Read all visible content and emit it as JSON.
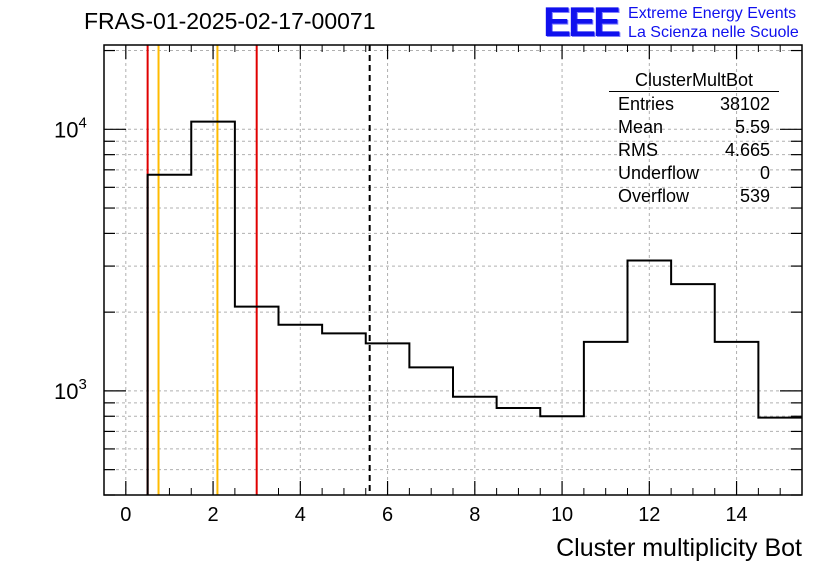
{
  "title": "FRAS-01-2025-02-17-00071",
  "logo": {
    "mark": "EEE",
    "line1": "Extreme Energy Events",
    "line2": "La Scienza nelle Scuole",
    "color": "#1010ee"
  },
  "stats_box": {
    "title": "ClusterMultBot",
    "rows": [
      {
        "label": "Entries",
        "value": "38102"
      },
      {
        "label": "Mean",
        "value": "5.59"
      },
      {
        "label": "RMS",
        "value": "4.665"
      },
      {
        "label": "Underflow",
        "value": "0"
      },
      {
        "label": "Overflow",
        "value": "539"
      }
    ]
  },
  "chart_data": {
    "type": "bar",
    "style": "step-histogram",
    "title": "FRAS-01-2025-02-17-00071",
    "xlabel": "Cluster multiplicity Bot",
    "ylabel": "",
    "xlim": [
      -0.5,
      15.5
    ],
    "ylim": [
      400,
      21000
    ],
    "yscale": "log",
    "grid": true,
    "bin_edges": [
      0.5,
      1.5,
      2.5,
      3.5,
      4.5,
      5.5,
      6.5,
      7.5,
      8.5,
      9.5,
      10.5,
      11.5,
      12.5,
      13.5,
      14.5,
      15.5
    ],
    "values": [
      6700,
      10700,
      2100,
      1790,
      1660,
      1520,
      1230,
      950,
      860,
      800,
      1540,
      3150,
      2560,
      1540,
      790
    ],
    "x_ticks": [
      "0",
      "2",
      "4",
      "6",
      "8",
      "10",
      "12",
      "14"
    ],
    "y_ticks": [
      {
        "value": 1000,
        "base": "10",
        "exp": "3"
      },
      {
        "value": 10000,
        "base": "10",
        "exp": "4"
      }
    ],
    "markers": [
      {
        "x": 0.5,
        "color": "#e00000",
        "style": "solid"
      },
      {
        "x": 0.75,
        "color": "#ffbb00",
        "style": "solid"
      },
      {
        "x": 2.1,
        "color": "#ffbb00",
        "style": "solid"
      },
      {
        "x": 3.0,
        "color": "#e00000",
        "style": "solid"
      },
      {
        "x": 5.59,
        "color": "#000000",
        "style": "dashed"
      }
    ]
  }
}
